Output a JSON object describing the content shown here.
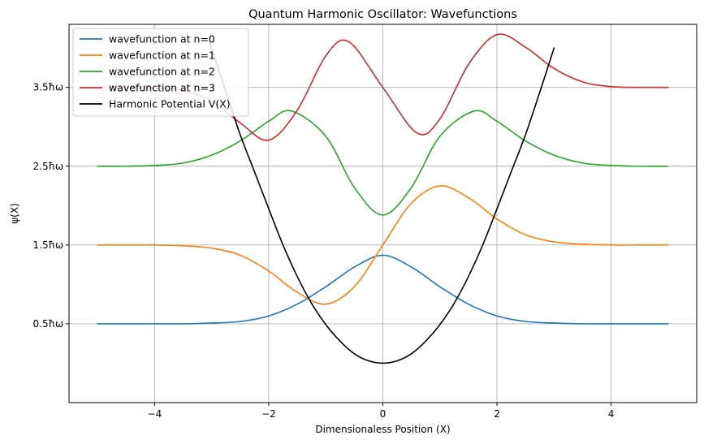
{
  "chart_data": {
    "type": "line",
    "title": "Quantum Harmonic Oscillator: Wavefunctions",
    "xlabel": "Dimensionaless Position (X)",
    "ylabel": "ψ(X)",
    "xlim": [
      -5.5,
      5.5
    ],
    "ylim": [
      -0.5,
      4.3
    ],
    "x_ticks": [
      {
        "value": -4,
        "label": "−4"
      },
      {
        "value": -2,
        "label": "−2"
      },
      {
        "value": 0,
        "label": "0"
      },
      {
        "value": 2,
        "label": "2"
      },
      {
        "value": 4,
        "label": "4"
      }
    ],
    "y_ticks": [
      {
        "value": 0.5,
        "label": "0.5ħω"
      },
      {
        "value": 1.5,
        "label": "1.5ħω"
      },
      {
        "value": 2.5,
        "label": "2.5ħω"
      },
      {
        "value": 3.5,
        "label": "3.5ħω"
      }
    ],
    "grid": true,
    "legend_position": "upper-left",
    "series": [
      {
        "name": "wavefunction at n=0",
        "color": "#1f77b4",
        "x": [
          -5.0,
          -4.5,
          -4.0,
          -3.5,
          -3.0,
          -2.5,
          -2.0,
          -1.5,
          -1.0,
          -0.5,
          0.0,
          0.5,
          1.0,
          1.5,
          2.0,
          2.5,
          3.0,
          3.5,
          4.0,
          4.5,
          5.0
        ],
        "y": [
          0.5,
          0.5,
          0.5,
          0.5,
          0.51,
          0.53,
          0.6,
          0.75,
          0.97,
          1.22,
          1.37,
          1.22,
          0.97,
          0.75,
          0.6,
          0.53,
          0.51,
          0.5,
          0.5,
          0.5,
          0.5
        ]
      },
      {
        "name": "wavefunction at n=1",
        "color": "#ff7f0e",
        "x": [
          -5.0,
          -4.5,
          -4.0,
          -3.5,
          -3.0,
          -2.5,
          -2.0,
          -1.5,
          -1.0,
          -0.5,
          0.0,
          0.5,
          1.0,
          1.5,
          2.0,
          2.5,
          3.0,
          3.5,
          4.0,
          4.5,
          5.0
        ],
        "y": [
          1.5,
          1.5,
          1.5,
          1.49,
          1.46,
          1.37,
          1.17,
          0.9,
          0.75,
          0.97,
          1.5,
          2.03,
          2.25,
          2.1,
          1.83,
          1.63,
          1.54,
          1.51,
          1.5,
          1.5,
          1.5
        ]
      },
      {
        "name": "wavefunction at n=2",
        "color": "#2ca02c",
        "x": [
          -5.0,
          -4.5,
          -4.0,
          -3.5,
          -3.0,
          -2.5,
          -2.0,
          -1.6,
          -1.0,
          -0.5,
          0.0,
          0.5,
          1.0,
          1.6,
          2.0,
          2.5,
          3.0,
          3.5,
          4.0,
          4.5,
          5.0
        ],
        "y": [
          2.5,
          2.5,
          2.51,
          2.54,
          2.64,
          2.82,
          3.07,
          3.2,
          2.88,
          2.23,
          1.88,
          2.23,
          2.88,
          3.2,
          3.07,
          2.82,
          2.64,
          2.54,
          2.51,
          2.5,
          2.5
        ]
      },
      {
        "name": "wavefunction at n=3",
        "color": "#d62728",
        "x": [
          -5.0,
          -4.5,
          -4.0,
          -3.5,
          -3.0,
          -2.5,
          -2.0,
          -1.5,
          -1.0,
          -0.6,
          0.0,
          0.6,
          1.0,
          1.5,
          2.0,
          2.5,
          3.0,
          3.5,
          4.0,
          4.5,
          5.0
        ],
        "y": [
          3.5,
          3.5,
          3.49,
          3.46,
          3.33,
          3.05,
          2.83,
          3.21,
          3.9,
          4.08,
          3.5,
          2.92,
          3.1,
          3.79,
          4.17,
          4.01,
          3.74,
          3.57,
          3.51,
          3.5,
          3.5
        ]
      },
      {
        "name": "Harmonic Potential V(X)",
        "color": "#000000",
        "x": [
          -3.05,
          -2.75,
          -2.5,
          -2.25,
          -2.0,
          -1.75,
          -1.5,
          -1.25,
          -1.0,
          -0.75,
          -0.5,
          -0.25,
          0.0,
          0.25,
          0.5,
          0.75,
          1.0,
          1.25,
          1.5,
          1.75,
          2.0,
          2.25,
          2.5,
          2.75,
          3.0
        ],
        "y": [
          4.1,
          3.44,
          2.9,
          2.43,
          1.96,
          1.5,
          1.1,
          0.76,
          0.49,
          0.28,
          0.12,
          0.03,
          0.0,
          0.03,
          0.12,
          0.28,
          0.49,
          0.76,
          1.1,
          1.5,
          1.96,
          2.43,
          2.9,
          3.44,
          4.0
        ]
      }
    ]
  }
}
